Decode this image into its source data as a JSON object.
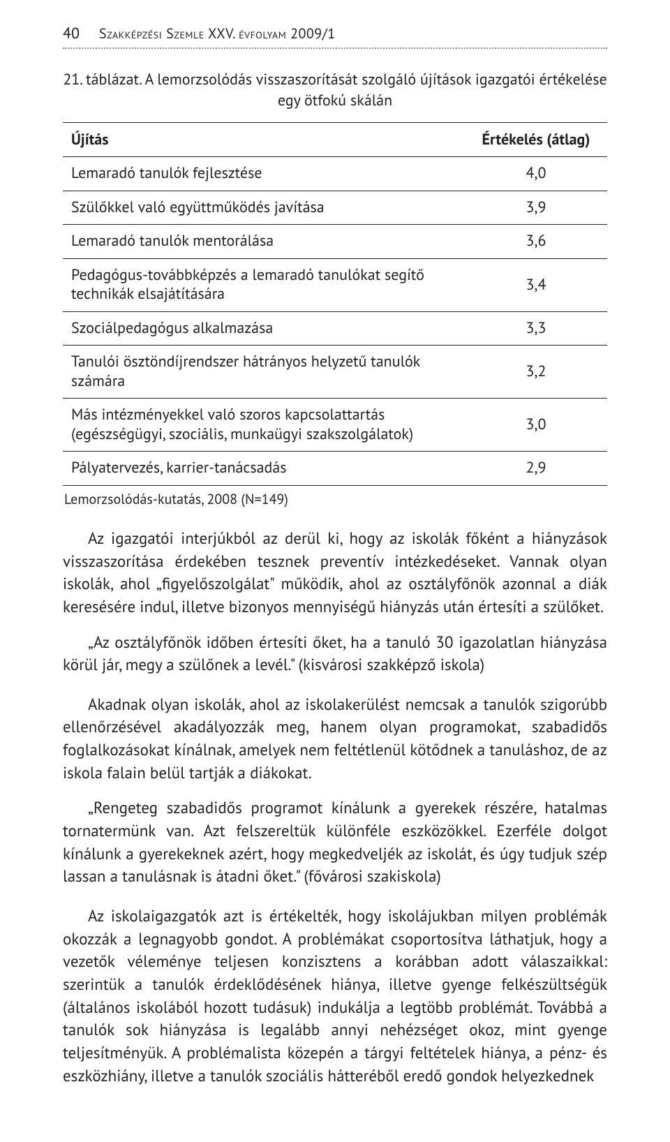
{
  "header": {
    "page_number": "40",
    "journal": "Szakképzési Szemle XXV. évfolyam 2009/1"
  },
  "table21": {
    "caption_line1": "21. táblázat.",
    "caption_line2": "A lemorzsolódás visszaszorítását szolgáló újítások igazgatói értékelése egy ötfokú skálán",
    "columns": [
      "Újítás",
      "Értékelés (átlag)"
    ],
    "rows": [
      {
        "label": "Lemaradó tanulók fejlesztése",
        "value": "4,0"
      },
      {
        "label": "Szülőkkel való együttműködés javítása",
        "value": "3,9"
      },
      {
        "label": "Lemaradó tanulók mentorálása",
        "value": "3,6"
      },
      {
        "label": "Pedagógus-továbbképzés a lemaradó tanulókat segítő technikák elsajátítására",
        "value": "3,4"
      },
      {
        "label": "Szociálpedagógus alkalmazása",
        "value": "3,3"
      },
      {
        "label": "Tanulói ösztöndíjrendszer hátrányos helyzetű tanulók számára",
        "value": "3,2"
      },
      {
        "label": "Más intézményekkel való szoros kapcsolattartás (egészségügyi, szociális, munkaügyi szakszolgálatok)",
        "value": "3,0"
      },
      {
        "label": "Pályatervezés, karrier-tanácsadás",
        "value": "2,9"
      }
    ],
    "note": "Lemorzsolódás-kutatás, 2008 (N=149)"
  },
  "paragraphs": {
    "p1": "Az igazgatói interjúkból az derül ki, hogy az iskolák főként a hiányzások visszaszorítása érdekében tesznek preventív intézkedéseket. Vannak olyan iskolák, ahol „figyelőszolgálat\" működik, ahol az osztályfőnök azonnal a diák keresésére indul, illetve bizonyos mennyiségű hiányzás után értesíti a szülőket.",
    "q1": "„Az osztályfőnök időben értesíti őket, ha a tanuló 30 igazolatlan hiányzása körül jár, megy a szülőnek a levél.\" (kisvárosi szakképző iskola)",
    "p2": "Akadnak olyan iskolák, ahol az iskolakerülést nemcsak a tanulók szigorúbb ellenőrzésével akadályozzák meg, hanem olyan programokat, szabadidős foglalkozásokat kínálnak, amelyek nem feltétlenül kötődnek a tanuláshoz, de az iskola falain belül tartják a diákokat.",
    "q2": "„Rengeteg szabadidős programot kínálunk a gyerekek részére, hatalmas tornatermünk van. Azt felszereltük különféle eszközökkel. Ezerféle dolgot kínálunk a gyerekeknek azért, hogy megkedveljék az iskolát, és úgy tudjuk szép lassan a tanulásnak is átadni őket.\" (fővárosi szakiskola)",
    "p3": "Az iskolaigazgatók azt is értékelték, hogy iskolájukban milyen problémák okozzák a legnagyobb gondot. A problémákat csoportosítva láthatjuk, hogy a vezetők véleménye teljesen konzisztens a korábban adott válaszaikkal: szerintük a tanulók érdeklődésének hiánya, illetve gyenge felkészültségük (általános iskolából hozott tudásuk) indukálja a legtöbb problémát. Továbbá a tanulók sok hiányzása is legalább annyi nehézséget okoz, mint gyenge teljesítményük. A problémalista közepén a tárgyi feltételek hiánya, a pénz- és eszközhiány, illetve a tanulók szociális hátteréből eredő gondok helyezkednek"
  }
}
